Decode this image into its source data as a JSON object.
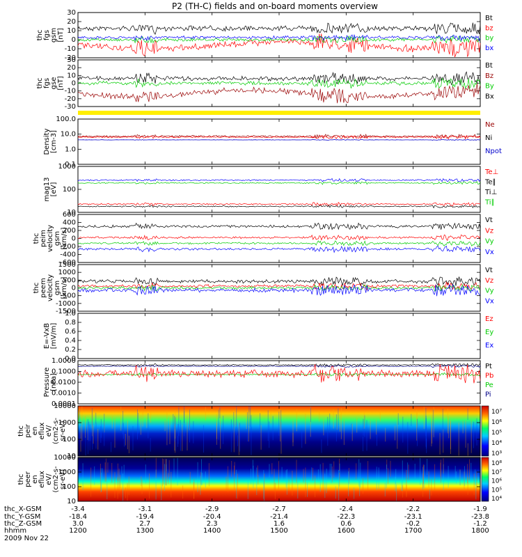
{
  "chart_data": {
    "type": "line",
    "title": "P2 (TH-C) fields and on-board moments overview",
    "date_label": "2009 Nov 22",
    "x_ticks": [
      "1200",
      "1300",
      "1400",
      "1500",
      "1600",
      "1700",
      "1800"
    ],
    "x_range_hhmm": [
      "1200",
      "1800"
    ],
    "ephemeris": [
      {
        "label": "thc_X-GSM",
        "values": [
          "-3.4",
          "-3.1",
          "-2.9",
          "-2.7",
          "-2.4",
          "-2.2",
          "-1.9"
        ]
      },
      {
        "label": "thc_Y-GSM",
        "values": [
          "-18.4",
          "-19.4",
          "-20.4",
          "-21.4",
          "-22.3",
          "-23.1",
          "-23.8"
        ]
      },
      {
        "label": "thc_Z-GSM",
        "values": [
          "3.0",
          "2.7",
          "2.3",
          "1.6",
          "0.6",
          "-0.2",
          "-1.2"
        ]
      },
      {
        "label": "hhmm",
        "values": [
          "1200",
          "1300",
          "1400",
          "1500",
          "1600",
          "1700",
          "1800"
        ]
      }
    ],
    "panels": [
      {
        "id": "fgs",
        "ylabel": [
          "thc",
          "fgs",
          "gsm",
          "[nT]"
        ],
        "yticks": [
          "30",
          "20",
          "10",
          "0",
          "-10",
          "-20"
        ],
        "ylim": [
          -20,
          30
        ],
        "series": [
          {
            "name": "Bt",
            "color": "#000000"
          },
          {
            "name": "bz",
            "color": "#ff0000"
          },
          {
            "name": "by",
            "color": "#00cc00"
          },
          {
            "name": "bx",
            "color": "#0000ff"
          }
        ]
      },
      {
        "id": "fgs_gse",
        "ylabel": [
          "thc",
          "fgs",
          "gse",
          "[nT]"
        ],
        "yticks": [
          "30",
          "20",
          "10",
          "0",
          "-10",
          "-20",
          "-30"
        ],
        "ylim": [
          -30,
          30
        ],
        "series": [
          {
            "name": "Bt",
            "color": "#000000"
          },
          {
            "name": "Bz",
            "color": "#990000"
          },
          {
            "name": "By",
            "color": "#00cc00"
          },
          {
            "name": "Bx",
            "color": "#000000"
          }
        ]
      },
      {
        "id": "flag",
        "ylabel": [],
        "yticks": [],
        "series": []
      },
      {
        "id": "density",
        "ylabel": [
          "Density",
          "[cm-3]"
        ],
        "yticks": [
          "100.0",
          "10.0",
          "1.0",
          "0.1"
        ],
        "log": true,
        "series": [
          {
            "name": "Ne",
            "color": "#990000"
          },
          {
            "name": "Ni",
            "color": "#000000"
          },
          {
            "name": "Npot",
            "color": "#0000cc"
          }
        ]
      },
      {
        "id": "temp",
        "ylabel": [
          "mag13",
          "[eV]"
        ],
        "yticks": [
          "1000",
          "100",
          "10"
        ],
        "log": true,
        "series": [
          {
            "name": "Te⊥",
            "color": "#ff0000"
          },
          {
            "name": "Te∥",
            "color": "#000000"
          },
          {
            "name": "Ti⊥",
            "color": "#000000"
          },
          {
            "name": "Ti∥",
            "color": "#00cc00"
          }
        ]
      },
      {
        "id": "peim",
        "ylabel": [
          "thc",
          "peim",
          "velocity",
          "gsm",
          "[km/s]"
        ],
        "yticks": [
          "600",
          "400",
          "200",
          "0",
          "-200",
          "-400",
          "-600"
        ],
        "ylim": [
          -600,
          600
        ],
        "series": [
          {
            "name": "Vt",
            "color": "#000000"
          },
          {
            "name": "Vz",
            "color": "#ff0000"
          },
          {
            "name": "Vy",
            "color": "#00cc00"
          },
          {
            "name": "Vx",
            "color": "#0000ff"
          }
        ]
      },
      {
        "id": "peem",
        "ylabel": [
          "thc",
          "peem",
          "velocity",
          "gsm",
          "[km/s]"
        ],
        "yticks": [
          "1500",
          "1000",
          "500",
          "0",
          "-500",
          "-1000",
          "-1500"
        ],
        "ylim": [
          -1500,
          1500
        ],
        "series": [
          {
            "name": "Vt",
            "color": "#000000"
          },
          {
            "name": "Vz",
            "color": "#ff0000"
          },
          {
            "name": "Vy",
            "color": "#00cc00"
          },
          {
            "name": "Vx",
            "color": "#0000ff"
          }
        ]
      },
      {
        "id": "efield",
        "ylabel": [
          "E=-VxB",
          "[mV/m]"
        ],
        "yticks": [
          "1.0",
          "0.8",
          "0.6",
          "0.4",
          "0.2",
          "0.0"
        ],
        "ylim": [
          0,
          1
        ],
        "series": [
          {
            "name": "Ez",
            "color": "#ff0000"
          },
          {
            "name": "Ey",
            "color": "#00cc00"
          },
          {
            "name": "Ex",
            "color": "#0000ff"
          }
        ]
      },
      {
        "id": "pressure",
        "ylabel": [
          "Pressure",
          "[nPa]"
        ],
        "yticks": [
          "1.0000",
          "0.1000",
          "0.0100",
          "0.0010",
          "0.0001"
        ],
        "log": true,
        "series": [
          {
            "name": "Pt",
            "color": "#000000"
          },
          {
            "name": "Pb",
            "color": "#ff0000"
          },
          {
            "name": "Pe",
            "color": "#00cc00"
          },
          {
            "name": "Pi",
            "color": "#000088"
          }
        ]
      },
      {
        "id": "peir",
        "ylabel": [
          "thc",
          "peir",
          "en",
          "eflux",
          "eV/",
          "(cm2-s-",
          "sr-eV)"
        ],
        "yticks": [
          "10000",
          "1000",
          "100",
          "10"
        ],
        "colorbar": [
          "10⁷",
          "10⁶",
          "10⁵",
          "10⁴",
          "10³"
        ]
      },
      {
        "id": "peer",
        "ylabel": [
          "thc",
          "peer",
          "en",
          "eflux",
          "eV/",
          "(cm2-s-",
          "sr-eV)"
        ],
        "yticks": [
          "10000",
          "1000",
          "100",
          "10"
        ],
        "colorbar": [
          "10⁸",
          "10⁷",
          "10⁶",
          "10⁵",
          "10⁴"
        ]
      }
    ],
    "colors": {
      "flag": "#ffee00",
      "spec_high": "#cc0000",
      "spec_low": "#000088"
    }
  }
}
